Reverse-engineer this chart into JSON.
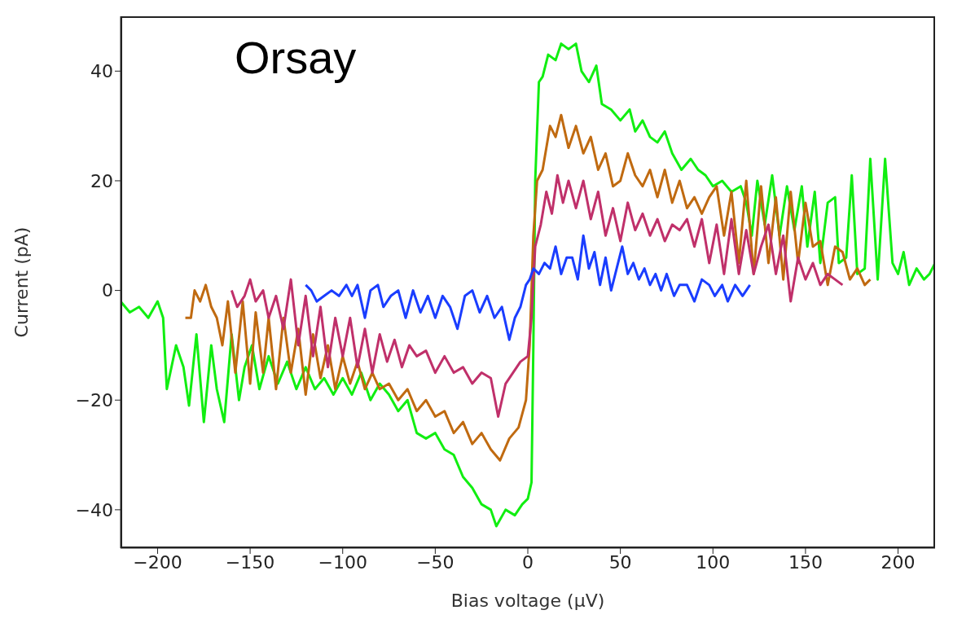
{
  "chart_data": {
    "type": "line",
    "xlabel": "Bias voltage (µV)",
    "ylabel": "Current (pA)",
    "annotations": [
      "Orsay"
    ],
    "xlim": [
      -220,
      220
    ],
    "ylim": [
      -47,
      50
    ],
    "xticks": [
      -200,
      -150,
      -100,
      -50,
      0,
      50,
      100,
      150,
      200
    ],
    "yticks": [
      -40,
      -20,
      0,
      20,
      40
    ],
    "marker": "none",
    "line_style": "solid",
    "series": [
      {
        "color": "#11ee11",
        "x": [
          -220,
          -215,
          -210,
          -205,
          -200,
          -197,
          -195,
          -190,
          -186,
          -183,
          -179,
          -175,
          -171,
          -168,
          -164,
          -160,
          -156,
          -153,
          -149,
          -145,
          -140,
          -135,
          -130,
          -125,
          -120,
          -115,
          -110,
          -105,
          -100,
          -95,
          -90,
          -85,
          -80,
          -75,
          -70,
          -65,
          -60,
          -55,
          -50,
          -45,
          -40,
          -35,
          -30,
          -25,
          -20,
          -17,
          -12,
          -7,
          -3,
          0,
          2,
          3,
          4,
          6,
          8,
          11,
          15,
          18,
          22,
          26,
          29,
          33,
          37,
          40,
          45,
          50,
          55,
          58,
          62,
          66,
          70,
          74,
          78,
          83,
          88,
          92,
          96,
          100,
          105,
          110,
          115,
          118,
          121,
          124,
          128,
          132,
          136,
          140,
          144,
          148,
          151,
          155,
          158,
          162,
          166,
          168,
          172,
          175,
          178,
          182,
          185,
          189,
          193,
          197,
          200,
          203,
          206,
          210,
          214,
          217,
          220
        ],
        "values": [
          -2,
          -4,
          -3,
          -5,
          -2,
          -5,
          -18,
          -10,
          -14,
          -21,
          -8,
          -24,
          -10,
          -18,
          -24,
          -8,
          -20,
          -14,
          -10,
          -18,
          -12,
          -17,
          -13,
          -18,
          -14,
          -18,
          -16,
          -19,
          -16,
          -19,
          -15,
          -20,
          -17,
          -19,
          -22,
          -20,
          -26,
          -27,
          -26,
          -29,
          -30,
          -34,
          -36,
          -39,
          -40,
          -43,
          -40,
          -41,
          -39,
          -38,
          -35,
          -10,
          20,
          38,
          39,
          43,
          42,
          45,
          44,
          45,
          40,
          38,
          41,
          34,
          33,
          31,
          33,
          29,
          31,
          28,
          27,
          29,
          25,
          22,
          24,
          22,
          21,
          19,
          20,
          18,
          19,
          16,
          10,
          20,
          12,
          21,
          10,
          19,
          11,
          19,
          8,
          18,
          5,
          16,
          17,
          5,
          6,
          21,
          3,
          4,
          24,
          2,
          24,
          5,
          3,
          7,
          1,
          4,
          2,
          3,
          5
        ]
      },
      {
        "color": "#c06a10",
        "x": [
          -185,
          -182,
          -180,
          -177,
          -174,
          -171,
          -168,
          -165,
          -162,
          -158,
          -154,
          -150,
          -147,
          -143,
          -140,
          -136,
          -132,
          -128,
          -124,
          -120,
          -116,
          -112,
          -108,
          -104,
          -100,
          -96,
          -92,
          -88,
          -84,
          -80,
          -75,
          -70,
          -65,
          -60,
          -55,
          -50,
          -45,
          -40,
          -35,
          -30,
          -25,
          -20,
          -15,
          -10,
          -5,
          -1,
          1,
          3,
          5,
          8,
          12,
          15,
          18,
          22,
          26,
          30,
          34,
          38,
          42,
          46,
          50,
          54,
          58,
          62,
          66,
          70,
          74,
          78,
          82,
          86,
          90,
          94,
          98,
          102,
          106,
          110,
          114,
          118,
          122,
          126,
          130,
          134,
          138,
          142,
          146,
          150,
          154,
          158,
          162,
          166,
          170,
          174,
          178,
          182,
          185
        ],
        "values": [
          -5,
          -5,
          0,
          -2,
          1,
          -3,
          -5,
          -10,
          -2,
          -15,
          -2,
          -17,
          -4,
          -15,
          -5,
          -18,
          -5,
          -15,
          -7,
          -19,
          -8,
          -16,
          -10,
          -18,
          -12,
          -17,
          -13,
          -18,
          -15,
          -18,
          -17,
          -20,
          -18,
          -22,
          -20,
          -23,
          -22,
          -26,
          -24,
          -28,
          -26,
          -29,
          -31,
          -27,
          -25,
          -20,
          -10,
          10,
          20,
          22,
          30,
          28,
          32,
          26,
          30,
          25,
          28,
          22,
          25,
          19,
          20,
          25,
          21,
          19,
          22,
          17,
          22,
          16,
          20,
          15,
          17,
          14,
          17,
          19,
          10,
          18,
          5,
          20,
          3,
          19,
          5,
          17,
          2,
          18,
          5,
          16,
          8,
          9,
          1,
          8,
          7,
          2,
          4,
          1,
          2
        ]
      },
      {
        "color": "#c0306a",
        "x": [
          -160,
          -157,
          -153,
          -150,
          -147,
          -143,
          -140,
          -136,
          -132,
          -128,
          -124,
          -120,
          -116,
          -112,
          -108,
          -104,
          -100,
          -96,
          -92,
          -88,
          -84,
          -80,
          -76,
          -72,
          -68,
          -64,
          -60,
          -55,
          -50,
          -45,
          -40,
          -35,
          -30,
          -25,
          -20,
          -16,
          -12,
          -8,
          -4,
          0,
          2,
          4,
          7,
          10,
          13,
          16,
          19,
          22,
          26,
          30,
          34,
          38,
          42,
          46,
          50,
          54,
          58,
          62,
          66,
          70,
          74,
          78,
          82,
          86,
          90,
          94,
          98,
          102,
          106,
          110,
          114,
          118,
          122,
          126,
          130,
          134,
          138,
          142,
          146,
          150,
          154,
          158,
          162,
          166,
          170
        ],
        "values": [
          0,
          -3,
          -1,
          2,
          -2,
          0,
          -5,
          -1,
          -7,
          2,
          -10,
          -1,
          -12,
          -3,
          -14,
          -5,
          -12,
          -5,
          -14,
          -7,
          -15,
          -8,
          -13,
          -9,
          -14,
          -10,
          -12,
          -11,
          -15,
          -12,
          -15,
          -14,
          -17,
          -15,
          -16,
          -23,
          -17,
          -15,
          -13,
          -12,
          -5,
          8,
          12,
          18,
          14,
          21,
          16,
          20,
          15,
          20,
          13,
          18,
          10,
          15,
          9,
          16,
          11,
          14,
          10,
          13,
          9,
          12,
          11,
          13,
          8,
          13,
          5,
          12,
          3,
          13,
          3,
          11,
          3,
          8,
          12,
          3,
          10,
          -2,
          6,
          2,
          5,
          1,
          3,
          2,
          1
        ]
      },
      {
        "color": "#1a3dff",
        "x": [
          -120,
          -117,
          -114,
          -110,
          -106,
          -102,
          -98,
          -95,
          -92,
          -88,
          -85,
          -81,
          -78,
          -74,
          -70,
          -66,
          -62,
          -58,
          -54,
          -50,
          -46,
          -42,
          -38,
          -34,
          -30,
          -26,
          -22,
          -18,
          -14,
          -10,
          -7,
          -4,
          -1,
          1,
          3,
          6,
          9,
          12,
          15,
          18,
          21,
          24,
          27,
          30,
          33,
          36,
          39,
          42,
          45,
          48,
          51,
          54,
          57,
          60,
          63,
          66,
          69,
          72,
          75,
          79,
          82,
          86,
          90,
          94,
          98,
          101,
          105,
          108,
          112,
          116,
          120
        ],
        "values": [
          1,
          0,
          -2,
          -1,
          0,
          -1,
          1,
          -1,
          1,
          -5,
          0,
          1,
          -3,
          -1,
          0,
          -5,
          0,
          -4,
          -1,
          -5,
          -1,
          -3,
          -7,
          -1,
          0,
          -4,
          -1,
          -5,
          -3,
          -9,
          -5,
          -3,
          1,
          2,
          4,
          3,
          5,
          4,
          8,
          3,
          6,
          6,
          2,
          10,
          4,
          7,
          1,
          6,
          0,
          4,
          8,
          3,
          5,
          2,
          4,
          1,
          3,
          0,
          3,
          -1,
          1,
          1,
          -2,
          2,
          1,
          -1,
          1,
          -2,
          1,
          -1,
          1
        ]
      }
    ]
  }
}
